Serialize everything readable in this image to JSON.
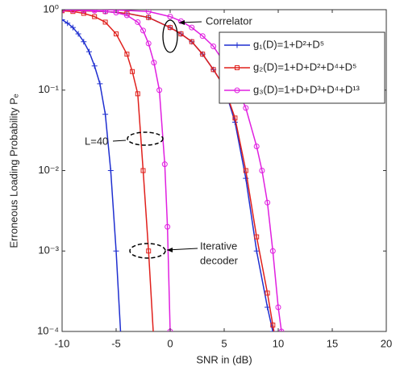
{
  "chart_data": {
    "type": "line",
    "xlabel": "SNR in (dB)",
    "ylabel": "Erroneous Loading Probability Pₑ",
    "xlim": [
      -10,
      20
    ],
    "xticks": [
      -10,
      -5,
      0,
      5,
      10,
      15,
      20
    ],
    "ylim": [
      0.0001,
      1
    ],
    "log_y": true,
    "yticks": [
      {
        "value": 0.0001,
        "label": "10⁻⁴"
      },
      {
        "value": 0.001,
        "label": "10⁻³"
      },
      {
        "value": 0.01,
        "label": "10⁻²"
      },
      {
        "value": 0.1,
        "label": "10⁻¹"
      },
      {
        "value": 1,
        "label": "10⁰"
      }
    ],
    "legend": "upper right",
    "series": [
      {
        "name": "g₁(D)=1+D²+D⁵",
        "color": "#1f2fd0",
        "marker": "plus",
        "curves": [
          {
            "x": [
              -10,
              -9.5,
              -9,
              -8.5,
              -8,
              -7.5,
              -7,
              -6.5,
              -6,
              -5.5,
              -5,
              -4.5
            ],
            "values": [
              0.75,
              0.68,
              0.6,
              0.5,
              0.4,
              0.3,
              0.2,
              0.12,
              0.05,
              0.01,
              0.001,
              6e-05
            ]
          },
          {
            "x": [
              -10,
              -8,
              -6,
              -4,
              -2,
              0,
              1,
              2,
              3,
              4,
              5,
              6,
              7,
              8,
              9,
              9.5
            ],
            "values": [
              0.98,
              0.97,
              0.95,
              0.9,
              0.8,
              0.6,
              0.5,
              0.4,
              0.28,
              0.18,
              0.11,
              0.04,
              0.008,
              0.001,
              0.0002,
              0.0001
            ]
          }
        ]
      },
      {
        "name": "g₂(D)=1+D+D²+D⁴+D⁵",
        "color": "#e0201c",
        "marker": "square",
        "curves": [
          {
            "x": [
              -10,
              -9,
              -8,
              -7,
              -6,
              -5,
              -4,
              -3.5,
              -3,
              -2.5,
              -2,
              -1.5
            ],
            "values": [
              0.97,
              0.95,
              0.9,
              0.82,
              0.7,
              0.5,
              0.28,
              0.17,
              0.09,
              0.01,
              0.001,
              7e-05
            ]
          },
          {
            "x": [
              -10,
              -8,
              -6,
              -4,
              -2,
              0,
              1,
              2,
              3,
              4,
              5,
              6,
              7,
              8,
              9,
              9.5,
              10
            ],
            "values": [
              0.98,
              0.97,
              0.95,
              0.9,
              0.8,
              0.6,
              0.5,
              0.4,
              0.28,
              0.18,
              0.11,
              0.045,
              0.01,
              0.0015,
              0.0003,
              0.00012,
              5e-05
            ]
          }
        ]
      },
      {
        "name": "g₃(D)=1+D+D³+D⁴+D¹³",
        "color": "#e020e0",
        "marker": "circle",
        "curves": [
          {
            "x": [
              -10,
              -9,
              -8,
              -7,
              -6,
              -5,
              -4,
              -3,
              -2.5,
              -2,
              -1.5,
              -1,
              -0.5,
              -0.25,
              0
            ],
            "values": [
              0.99,
              0.99,
              0.98,
              0.97,
              0.95,
              0.92,
              0.85,
              0.7,
              0.55,
              0.38,
              0.22,
              0.1,
              0.012,
              0.002,
              0.0001
            ]
          },
          {
            "x": [
              -10,
              -7,
              -5,
              -2,
              0,
              1,
              2,
              3,
              4,
              5,
              6,
              7,
              8,
              8.5,
              9,
              9.5,
              10,
              10.3
            ],
            "values": [
              1,
              1,
              0.99,
              0.95,
              0.82,
              0.72,
              0.6,
              0.47,
              0.35,
              0.22,
              0.12,
              0.06,
              0.02,
              0.01,
              0.004,
              0.001,
              0.0002,
              0.0001
            ]
          }
        ]
      }
    ],
    "annotations": {
      "correlator": "Correlator",
      "length": "L=40",
      "iterative": [
        "Iterative",
        "decoder"
      ]
    }
  }
}
